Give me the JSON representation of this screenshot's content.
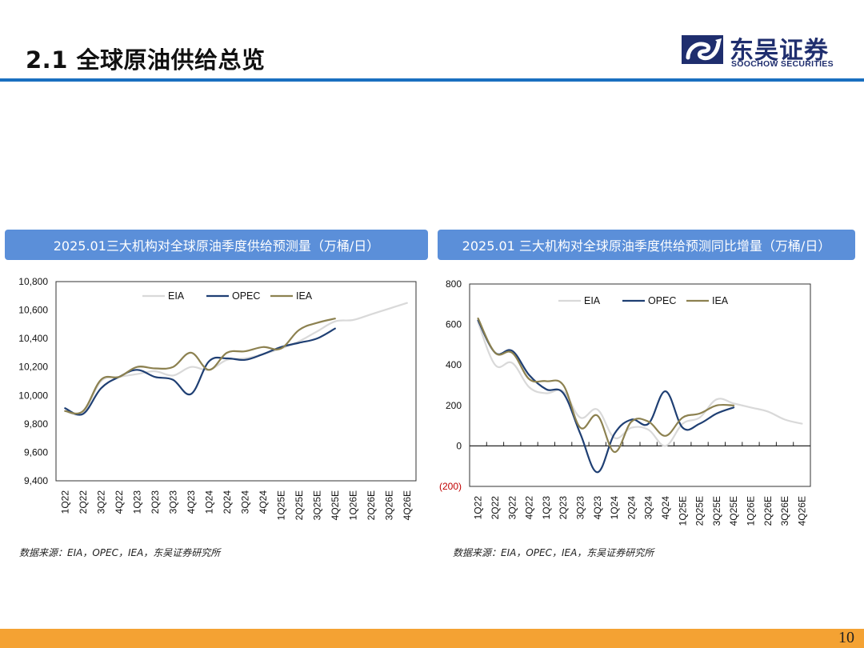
{
  "header": {
    "title": "2.1 全球原油供给总览",
    "logo_cn": "东吴证券",
    "logo_en": "SOOCHOW SECURITIES"
  },
  "colors": {
    "accent": "#1a6fc0",
    "header_box": "#5b8fd9",
    "footer": "#f4a233",
    "EIA": "#d9d9d9",
    "OPEC": "#1f3f73",
    "IEA": "#8c8150",
    "negative_label": "#c00000"
  },
  "charts": {
    "left": {
      "header": "2025.01三大机构对全球原油季度供给预测量（万桶/日）",
      "source": "数据来源：EIA，OPEC，IEA，东吴证券研究所",
      "y_tick_labels": [
        "10,800",
        "10,600",
        "10,400",
        "10,200",
        "10,000",
        "9,800",
        "9,600",
        "9,400"
      ]
    },
    "right": {
      "header": "2025.01 三大机构对全球原油季度供给预测同比增量（万桶/日）",
      "source": "数据来源：EIA，OPEC，IEA，东吴证券研究所",
      "y_tick_labels": [
        "800",
        "600",
        "400",
        "200",
        "0",
        "(200)"
      ]
    }
  },
  "chart_data": [
    {
      "type": "line",
      "title": "2025.01三大机构对全球原油季度供给预测量（万桶/日）",
      "xlabel": "",
      "ylabel": "",
      "ylim": [
        9400,
        10800
      ],
      "y_ticks": [
        9400,
        9600,
        9800,
        10000,
        10200,
        10400,
        10600,
        10800
      ],
      "legend_position": "top",
      "categories": [
        "1Q22",
        "2Q22",
        "3Q22",
        "4Q22",
        "1Q23",
        "2Q23",
        "3Q23",
        "4Q23",
        "1Q24",
        "2Q24",
        "3Q24",
        "4Q24",
        "1Q25E",
        "2Q25E",
        "3Q25E",
        "4Q25E",
        "1Q26E",
        "2Q26E",
        "3Q26E",
        "4Q26E"
      ],
      "series": [
        {
          "name": "EIA",
          "values": [
            9890,
            9880,
            10100,
            10130,
            10150,
            10170,
            10140,
            10200,
            10180,
            10250,
            10260,
            10290,
            10330,
            10380,
            10450,
            10520,
            10530,
            10570,
            10610,
            10650
          ]
        },
        {
          "name": "OPEC",
          "values": [
            9910,
            9870,
            10050,
            10130,
            10180,
            10130,
            10110,
            10010,
            10240,
            10260,
            10250,
            10290,
            10340,
            10370,
            10400,
            10470,
            null,
            null,
            null,
            null
          ]
        },
        {
          "name": "IEA",
          "values": [
            9890,
            9890,
            10110,
            10130,
            10200,
            10190,
            10200,
            10300,
            10180,
            10300,
            10310,
            10340,
            10330,
            10460,
            10510,
            10540,
            null,
            null,
            null,
            null
          ]
        }
      ]
    },
    {
      "type": "line",
      "title": "2025.01 三大机构对全球原油季度供给预测同比增量（万桶/日）",
      "xlabel": "",
      "ylabel": "",
      "ylim": [
        -200,
        800
      ],
      "y_ticks": [
        -200,
        0,
        200,
        400,
        600,
        800
      ],
      "legend_position": "top",
      "categories": [
        "1Q22",
        "2Q22",
        "3Q22",
        "4Q22",
        "1Q23",
        "2Q23",
        "3Q23",
        "4Q23",
        "1Q24",
        "2Q24",
        "3Q24",
        "4Q24",
        "1Q25E",
        "2Q25E",
        "3Q25E",
        "4Q25E",
        "1Q26E",
        "2Q26E",
        "3Q26E",
        "4Q26E"
      ],
      "series": [
        {
          "name": "EIA",
          "values": [
            610,
            400,
            410,
            290,
            260,
            270,
            140,
            180,
            40,
            90,
            80,
            0,
            110,
            140,
            230,
            210,
            190,
            170,
            130,
            110
          ]
        },
        {
          "name": "OPEC",
          "values": [
            620,
            460,
            470,
            350,
            280,
            260,
            60,
            -130,
            60,
            130,
            110,
            270,
            90,
            110,
            160,
            190,
            null,
            null,
            null,
            null
          ]
        },
        {
          "name": "IEA",
          "values": [
            630,
            460,
            460,
            330,
            320,
            300,
            90,
            150,
            -30,
            120,
            120,
            50,
            140,
            160,
            200,
            200,
            null,
            null,
            null,
            null
          ]
        }
      ]
    }
  ],
  "footer": {
    "page_number": "10"
  }
}
